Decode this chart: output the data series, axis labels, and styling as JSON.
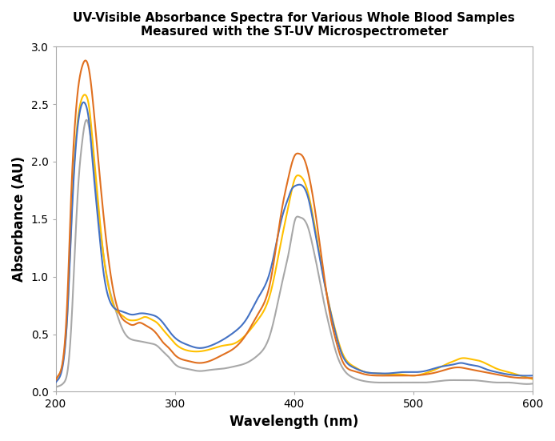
{
  "title_line1": "UV-Visible Absorbance Spectra for Various Whole Blood Samples",
  "title_line2": "Measured with the ST-UV Microspectrometer",
  "xlabel": "Wavelength (nm)",
  "ylabel": "Absorbance (AU)",
  "xlim": [
    200,
    600
  ],
  "ylim": [
    0.0,
    3.0
  ],
  "yticks": [
    0.0,
    0.5,
    1.0,
    1.5,
    2.0,
    2.5,
    3.0
  ],
  "xticks": [
    200,
    300,
    400,
    500,
    600
  ],
  "background_color": "#ffffff",
  "line_width": 1.5,
  "colors": {
    "blue": "#4472C4",
    "orange": "#E07020",
    "yellow": "#FFC000",
    "gray": "#A8A8A8"
  },
  "keypoints_blue": {
    "x": [
      200,
      203,
      207,
      210,
      213,
      216,
      219,
      222,
      225,
      228,
      231,
      235,
      240,
      245,
      250,
      255,
      260,
      265,
      270,
      275,
      280,
      285,
      290,
      295,
      300,
      310,
      320,
      330,
      340,
      350,
      360,
      370,
      380,
      390,
      395,
      398,
      401,
      404,
      408,
      412,
      416,
      420,
      425,
      430,
      435,
      440,
      450,
      460,
      470,
      480,
      490,
      500,
      510,
      520,
      530,
      535,
      540,
      545,
      550,
      555,
      560,
      570,
      580,
      590,
      600
    ],
    "y": [
      0.08,
      0.12,
      0.3,
      0.7,
      1.4,
      2.0,
      2.35,
      2.5,
      2.5,
      2.35,
      2.0,
      1.55,
      1.05,
      0.8,
      0.72,
      0.7,
      0.68,
      0.67,
      0.68,
      0.68,
      0.67,
      0.65,
      0.6,
      0.53,
      0.47,
      0.41,
      0.38,
      0.4,
      0.45,
      0.52,
      0.63,
      0.82,
      1.05,
      1.52,
      1.68,
      1.76,
      1.79,
      1.8,
      1.78,
      1.68,
      1.48,
      1.25,
      0.97,
      0.72,
      0.5,
      0.33,
      0.21,
      0.17,
      0.16,
      0.16,
      0.17,
      0.17,
      0.18,
      0.21,
      0.23,
      0.24,
      0.25,
      0.24,
      0.23,
      0.22,
      0.2,
      0.17,
      0.15,
      0.14,
      0.14
    ]
  },
  "keypoints_orange": {
    "x": [
      200,
      203,
      207,
      210,
      213,
      216,
      219,
      222,
      225,
      228,
      231,
      235,
      240,
      245,
      250,
      255,
      260,
      265,
      270,
      275,
      280,
      285,
      290,
      295,
      300,
      310,
      320,
      330,
      340,
      350,
      360,
      370,
      380,
      390,
      395,
      398,
      401,
      404,
      407,
      410,
      414,
      418,
      422,
      426,
      430,
      435,
      440,
      450,
      460,
      470,
      480,
      490,
      500,
      510,
      520,
      530,
      535,
      540,
      545,
      550,
      555,
      560,
      570,
      580,
      590,
      600
    ],
    "y": [
      0.1,
      0.15,
      0.35,
      0.85,
      1.7,
      2.3,
      2.65,
      2.82,
      2.88,
      2.8,
      2.55,
      2.1,
      1.55,
      1.1,
      0.8,
      0.65,
      0.6,
      0.58,
      0.6,
      0.58,
      0.55,
      0.5,
      0.43,
      0.38,
      0.32,
      0.27,
      0.25,
      0.27,
      0.32,
      0.38,
      0.5,
      0.68,
      0.95,
      1.6,
      1.85,
      1.98,
      2.06,
      2.07,
      2.05,
      1.98,
      1.8,
      1.55,
      1.25,
      0.95,
      0.68,
      0.45,
      0.28,
      0.18,
      0.15,
      0.14,
      0.14,
      0.14,
      0.14,
      0.15,
      0.17,
      0.2,
      0.21,
      0.21,
      0.2,
      0.19,
      0.18,
      0.17,
      0.15,
      0.13,
      0.12,
      0.12
    ]
  },
  "keypoints_yellow": {
    "x": [
      200,
      203,
      207,
      210,
      213,
      216,
      219,
      222,
      225,
      228,
      231,
      235,
      240,
      245,
      250,
      255,
      260,
      265,
      270,
      275,
      280,
      285,
      290,
      295,
      300,
      310,
      320,
      330,
      340,
      350,
      360,
      370,
      380,
      390,
      395,
      398,
      401,
      404,
      408,
      412,
      416,
      420,
      425,
      430,
      435,
      440,
      450,
      460,
      470,
      480,
      490,
      500,
      510,
      520,
      530,
      535,
      540,
      545,
      550,
      555,
      560,
      570,
      580,
      590,
      600
    ],
    "y": [
      0.1,
      0.15,
      0.32,
      0.72,
      1.45,
      2.05,
      2.4,
      2.55,
      2.58,
      2.48,
      2.18,
      1.72,
      1.2,
      0.88,
      0.72,
      0.67,
      0.63,
      0.62,
      0.63,
      0.65,
      0.63,
      0.6,
      0.54,
      0.48,
      0.42,
      0.36,
      0.35,
      0.37,
      0.4,
      0.42,
      0.5,
      0.63,
      0.85,
      1.35,
      1.6,
      1.75,
      1.86,
      1.88,
      1.84,
      1.72,
      1.52,
      1.28,
      0.98,
      0.73,
      0.52,
      0.35,
      0.22,
      0.17,
      0.16,
      0.15,
      0.15,
      0.14,
      0.16,
      0.2,
      0.25,
      0.27,
      0.29,
      0.29,
      0.28,
      0.27,
      0.25,
      0.2,
      0.17,
      0.14,
      0.11
    ]
  },
  "keypoints_gray": {
    "x": [
      200,
      203,
      207,
      210,
      213,
      216,
      219,
      222,
      225,
      228,
      231,
      235,
      240,
      245,
      250,
      255,
      260,
      265,
      270,
      275,
      280,
      285,
      290,
      295,
      300,
      310,
      320,
      330,
      340,
      350,
      360,
      370,
      380,
      390,
      395,
      398,
      401,
      404,
      408,
      412,
      416,
      420,
      425,
      430,
      435,
      440,
      450,
      460,
      470,
      480,
      490,
      500,
      510,
      520,
      530,
      540,
      550,
      560,
      570,
      580,
      590,
      600
    ],
    "y": [
      0.04,
      0.05,
      0.08,
      0.18,
      0.55,
      1.2,
      1.8,
      2.15,
      2.35,
      2.3,
      2.05,
      1.65,
      1.2,
      0.9,
      0.72,
      0.57,
      0.48,
      0.45,
      0.44,
      0.43,
      0.42,
      0.4,
      0.35,
      0.3,
      0.24,
      0.2,
      0.18,
      0.19,
      0.2,
      0.22,
      0.25,
      0.32,
      0.5,
      0.95,
      1.18,
      1.35,
      1.5,
      1.52,
      1.5,
      1.42,
      1.25,
      1.05,
      0.78,
      0.55,
      0.35,
      0.22,
      0.12,
      0.09,
      0.08,
      0.08,
      0.08,
      0.08,
      0.08,
      0.09,
      0.1,
      0.1,
      0.1,
      0.09,
      0.08,
      0.08,
      0.07,
      0.07
    ]
  },
  "figsize": [
    6.94,
    5.51
  ],
  "dpi": 100
}
